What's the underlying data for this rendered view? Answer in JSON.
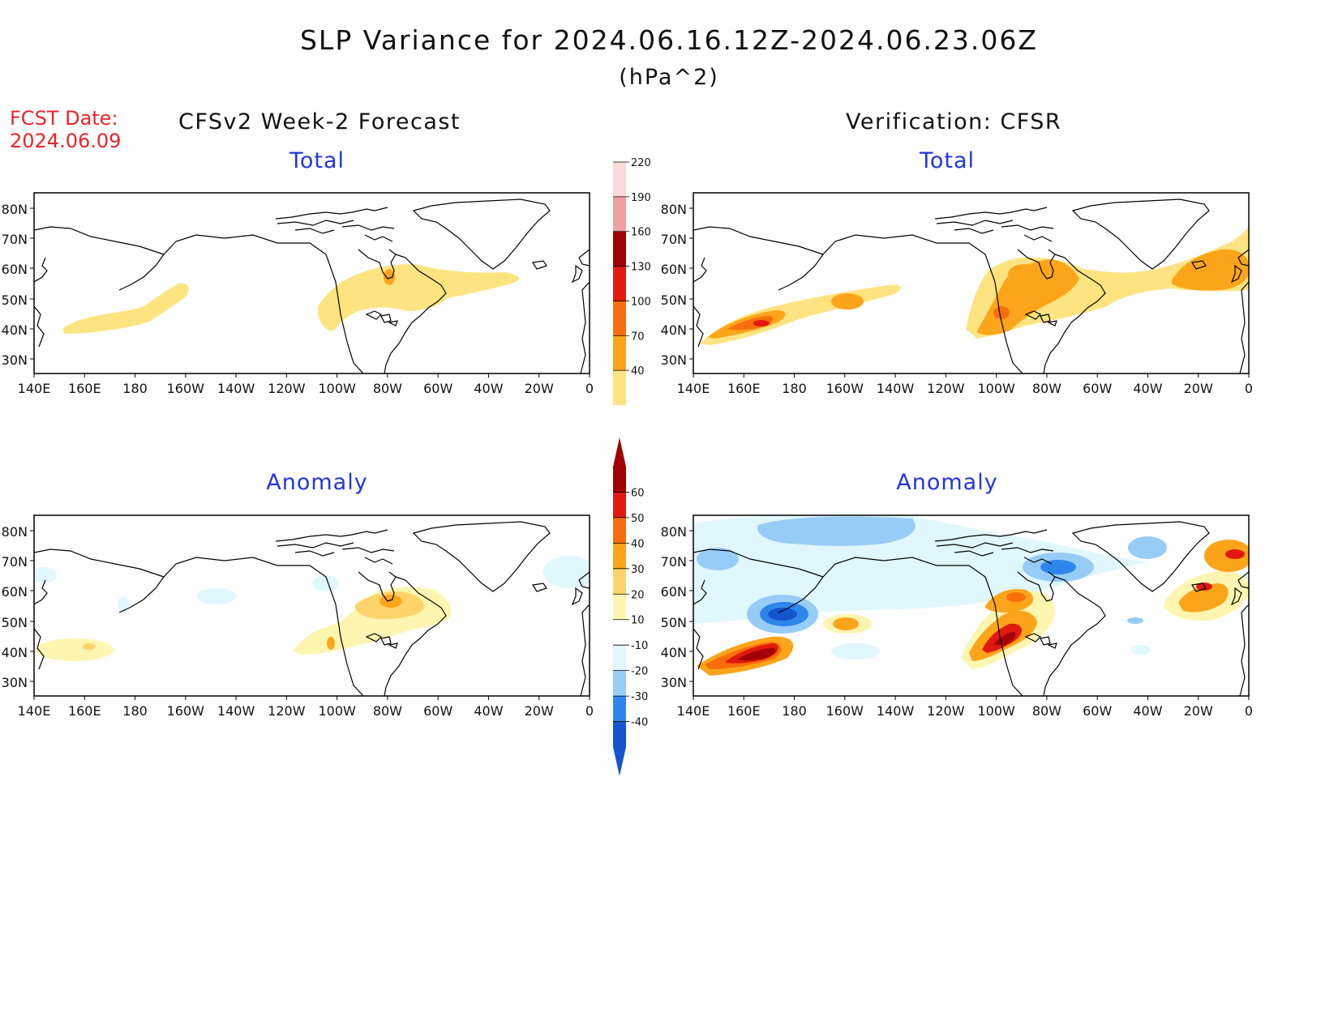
{
  "header": {
    "title": "SLP Variance for 2024.06.16.12Z-2024.06.23.06Z",
    "units": "(hPa^2)",
    "fcst_date_label": "FCST Date:",
    "fcst_date_value": "2024.06.09"
  },
  "columns": {
    "left": "CFSv2 Week-2 Forecast",
    "right": "Verification: CFSR"
  },
  "panels": {
    "top_left": "Total",
    "top_right": "Total",
    "bottom_left": "Anomaly",
    "bottom_right": "Anomaly"
  },
  "axes": {
    "lat_ticks": [
      "80N",
      "70N",
      "60N",
      "50N",
      "40N",
      "30N"
    ],
    "lon_ticks": [
      "140E",
      "160E",
      "180",
      "160W",
      "140W",
      "120W",
      "100W",
      "80W",
      "60W",
      "40W",
      "20W",
      "0"
    ]
  },
  "colorbars": {
    "total": {
      "levels": [
        "40",
        "70",
        "100",
        "130",
        "160",
        "190",
        "220"
      ],
      "colors": [
        "#fee481",
        "#fda51a",
        "#f86e0d",
        "#e1190f",
        "#a20205",
        "#f0a0a0",
        "#fcd9d9"
      ]
    },
    "anomaly": {
      "levels": [
        "-40",
        "-30",
        "-20",
        "-10",
        "10",
        "20",
        "30",
        "40",
        "50",
        "60"
      ],
      "colors": [
        "#1555cf",
        "#2f86ea",
        "#96ccf6",
        "#e0f7fd",
        "#ffffff",
        "#fef6b0",
        "#fed36a",
        "#fda51a",
        "#f86e0d",
        "#e1190f",
        "#a20205"
      ]
    }
  }
}
